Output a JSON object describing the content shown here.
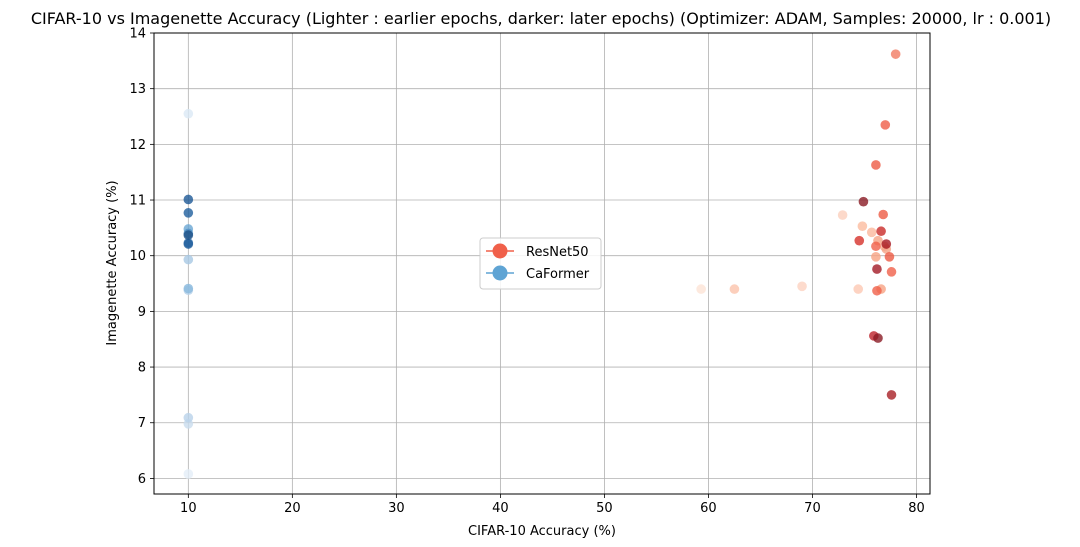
{
  "chart_data": {
    "type": "scatter",
    "title": "CIFAR-10 vs Imagenette Accuracy (Lighter : earlier epochs, darker: later epochs) (Optimizer: ADAM, Samples: 20000, lr : 0.001)",
    "xlabel": "CIFAR-10 Accuracy (%)",
    "ylabel": "Imagenette Accuracy (%)",
    "xlim": [
      6.7,
      81.3
    ],
    "ylim": [
      5.72,
      14.0
    ],
    "xticks": [
      10,
      20,
      30,
      40,
      50,
      60,
      70,
      80
    ],
    "yticks": [
      6,
      7,
      8,
      9,
      10,
      11,
      12,
      13,
      14
    ],
    "grid": true,
    "legend_position": "center",
    "series": [
      {
        "name": "ResNet50",
        "color": "#f0604a",
        "points": [
          {
            "x": 59.3,
            "y": 9.4,
            "color": "#fde3d6"
          },
          {
            "x": 62.5,
            "y": 9.4,
            "color": "#fbc3ab"
          },
          {
            "x": 69.0,
            "y": 9.45,
            "color": "#fcd2c0"
          },
          {
            "x": 72.9,
            "y": 10.73,
            "color": "#fbd0bd"
          },
          {
            "x": 74.4,
            "y": 9.4,
            "color": "#fcc8b3"
          },
          {
            "x": 74.8,
            "y": 10.53,
            "color": "#fbbc9f"
          },
          {
            "x": 75.7,
            "y": 10.42,
            "color": "#fbb89c"
          },
          {
            "x": 76.1,
            "y": 9.98,
            "color": "#f7a383"
          },
          {
            "x": 76.3,
            "y": 10.27,
            "color": "#f6a283"
          },
          {
            "x": 76.9,
            "y": 10.17,
            "color": "#f9b29a"
          },
          {
            "x": 77.1,
            "y": 10.12,
            "color": "#f5a385"
          },
          {
            "x": 76.6,
            "y": 9.4,
            "color": "#f7a383"
          },
          {
            "x": 76.2,
            "y": 9.37,
            "color": "#f0604a"
          },
          {
            "x": 77.6,
            "y": 9.71,
            "color": "#f0604a"
          },
          {
            "x": 77.4,
            "y": 9.98,
            "color": "#ec5a44"
          },
          {
            "x": 76.1,
            "y": 10.17,
            "color": "#f0604a"
          },
          {
            "x": 76.8,
            "y": 10.74,
            "color": "#ee5b45"
          },
          {
            "x": 76.1,
            "y": 11.63,
            "color": "#ee5b45"
          },
          {
            "x": 77.0,
            "y": 12.35,
            "color": "#ef5e48"
          },
          {
            "x": 78.0,
            "y": 13.62,
            "color": "#f17c63"
          },
          {
            "x": 74.5,
            "y": 10.27,
            "color": "#d6312b"
          },
          {
            "x": 76.6,
            "y": 10.44,
            "color": "#c92a28"
          },
          {
            "x": 77.1,
            "y": 10.21,
            "color": "#a6161f"
          },
          {
            "x": 76.2,
            "y": 9.76,
            "color": "#a31a26"
          },
          {
            "x": 74.9,
            "y": 10.97,
            "color": "#8a1a24"
          },
          {
            "x": 75.9,
            "y": 8.56,
            "color": "#bb222a"
          },
          {
            "x": 76.3,
            "y": 8.52,
            "color": "#8a1a24"
          },
          {
            "x": 77.6,
            "y": 7.5,
            "color": "#a71f26"
          }
        ]
      },
      {
        "name": "CaFormer",
        "color": "#5fa4d4",
        "points": [
          {
            "x": 10.0,
            "y": 12.55,
            "color": "#dbe8f5"
          },
          {
            "x": 10.0,
            "y": 6.08,
            "color": "#e4eef8"
          },
          {
            "x": 10.0,
            "y": 6.98,
            "color": "#c9dcee"
          },
          {
            "x": 10.0,
            "y": 7.09,
            "color": "#b9d2ea"
          },
          {
            "x": 10.0,
            "y": 9.38,
            "color": "#b3cfe8"
          },
          {
            "x": 10.0,
            "y": 9.41,
            "color": "#8ab9dd"
          },
          {
            "x": 10.0,
            "y": 9.93,
            "color": "#a8c8e3"
          },
          {
            "x": 10.0,
            "y": 10.48,
            "color": "#6aa6d3"
          },
          {
            "x": 10.0,
            "y": 10.4,
            "color": "#4f8fc4"
          },
          {
            "x": 10.0,
            "y": 10.23,
            "color": "#3b78b4"
          },
          {
            "x": 10.0,
            "y": 10.21,
            "color": "#1e5c9b"
          },
          {
            "x": 10.0,
            "y": 10.37,
            "color": "#1a4f86"
          },
          {
            "x": 10.0,
            "y": 10.77,
            "color": "#1f5f9d"
          },
          {
            "x": 10.0,
            "y": 11.01,
            "color": "#1d5996"
          }
        ]
      }
    ]
  }
}
